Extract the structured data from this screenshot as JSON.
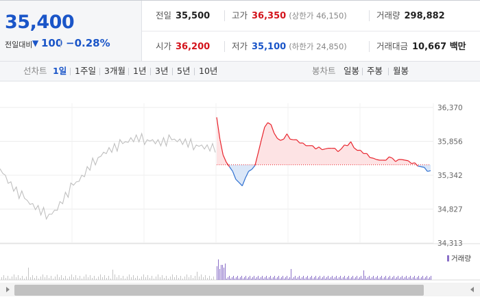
{
  "header": {
    "current_price": "35,400",
    "change_label": "전일대비",
    "change_arrow": "▼",
    "change_amount": "100",
    "change_rate": "−0.28%"
  },
  "stats": {
    "prev_close": {
      "label": "전일",
      "value": "35,500"
    },
    "high": {
      "label": "고가",
      "value": "36,350",
      "sub": "(상한가 46,150)"
    },
    "volume": {
      "label": "거래량",
      "value": "298,882"
    },
    "open": {
      "label": "시가",
      "value": "36,200"
    },
    "low": {
      "label": "저가",
      "value": "35,100",
      "sub": "(하한가 24,850)"
    },
    "trade_value": {
      "label": "거래대금",
      "value": "10,667 백만"
    }
  },
  "line_chart_tabs": {
    "label": "선차트",
    "items": [
      "1일",
      "1주일",
      "3개월",
      "1년",
      "3년",
      "5년",
      "10년"
    ],
    "active": "1일"
  },
  "candle_chart_tabs": {
    "label": "봉차트",
    "items": [
      "일봉",
      "주봉",
      "월봉"
    ]
  },
  "chart": {
    "y_ticks": [
      "36,370",
      "35,856",
      "35,342",
      "34,827",
      "34,313"
    ],
    "volume_legend": "거래량",
    "colors": {
      "up_line": "#e8222b",
      "up_fill": "#fde3e4",
      "down_line": "#2d6fd0",
      "down_fill": "#dbe7f8",
      "prev_day_line": "#bfbfbf",
      "volume_bar": "#8a6fc8",
      "prev_volume_bar": "#c4c4c4",
      "baseline": "#e8222b"
    }
  },
  "chart_data": {
    "type": "line",
    "title": "",
    "y_ticks": [
      36370,
      35856,
      35342,
      34827,
      34313
    ],
    "ylim": [
      34313,
      36370
    ],
    "baseline": 35500,
    "grid": true,
    "series": [
      {
        "name": "",
        "values": [
          35440,
          35380,
          35320,
          35250,
          35200,
          35150,
          35100,
          35060,
          35020,
          34990,
          34950,
          34920,
          34880,
          34860,
          34830,
          34800,
          34780,
          34760,
          34750,
          34760,
          34790,
          34840,
          34900,
          34960,
          35020,
          35080,
          35140,
          35190,
          35230,
          35270,
          35310,
          35360,
          35420,
          35480,
          35530,
          35580,
          35610,
          35640,
          35670,
          35700,
          35720,
          35740,
          35760,
          35780,
          35800,
          35820,
          35840,
          35860,
          35880,
          35890,
          35900,
          35910,
          35900,
          35890,
          35880,
          35870,
          35860,
          35850,
          35840,
          35840,
          35850,
          35860,
          35870,
          35880,
          35880,
          35870,
          35860,
          35850,
          35840,
          35830,
          35820,
          35810,
          35800,
          35790,
          35780,
          35770,
          35760,
          35760,
          35760,
          35760
        ]
      },
      {
        "name": "",
        "values": [
          36200,
          35900,
          35640,
          35560,
          35470,
          35380,
          35290,
          35220,
          35200,
          35300,
          35380,
          35440,
          35480,
          35700,
          35880,
          36050,
          36150,
          36100,
          36000,
          35900,
          35850,
          35900,
          35960,
          35910,
          35880,
          35860,
          35840,
          35820,
          35810,
          35790,
          35770,
          35750,
          35760,
          35750,
          35740,
          35730,
          35760,
          35740,
          35720,
          35740,
          35780,
          35800,
          35840,
          35780,
          35720,
          35700,
          35680,
          35660,
          35630,
          35600,
          35560,
          35580,
          35560,
          35590,
          35620,
          35580,
          35560,
          35570,
          35600,
          35570,
          35540,
          35530,
          35520,
          35500,
          35470,
          35440,
          35410,
          35400
        ]
      }
    ],
    "volume_legend": "거래량"
  }
}
